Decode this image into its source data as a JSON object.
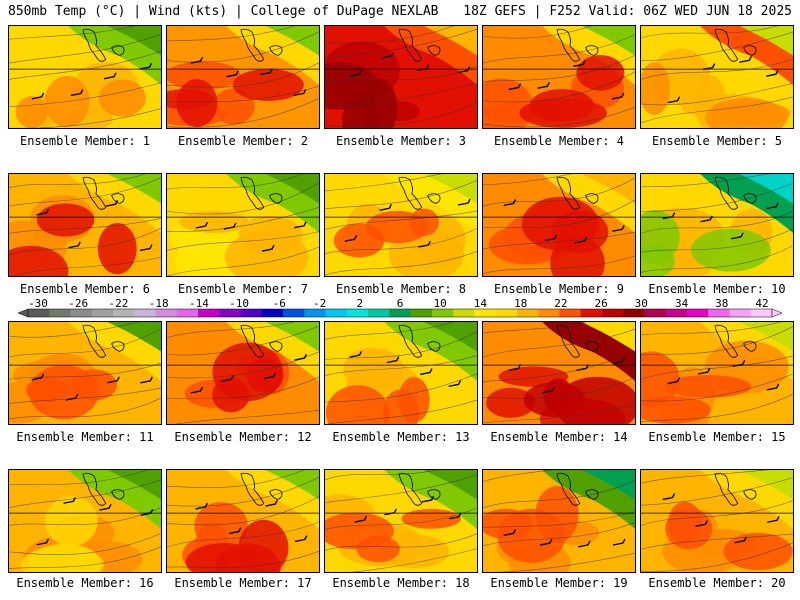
{
  "header": {
    "left": "850mb Temp (°C) | Wind (kts) | College of DuPage NEXLAB",
    "right": "18Z GEFS | F252 Valid: 06Z WED JUN 18 2025"
  },
  "panel_caption_prefix": "Ensemble Member:",
  "members": [
    {
      "label": "Ensemble Member: 1",
      "palette": [
        "#ffd800",
        "#ffb400",
        "#ff8c00",
        "#80c800",
        "#50a000"
      ]
    },
    {
      "label": "Ensemble Member: 2",
      "palette": [
        "#ff9600",
        "#ff5000",
        "#e21000",
        "#ffd800",
        "#80c800"
      ]
    },
    {
      "label": "Ensemble Member: 3",
      "palette": [
        "#e21000",
        "#c00000",
        "#960000",
        "#ff5000",
        "#ffb400"
      ]
    },
    {
      "label": "Ensemble Member: 4",
      "palette": [
        "#ff8c00",
        "#ff5000",
        "#e21000",
        "#ffd800",
        "#80c800"
      ]
    },
    {
      "label": "Ensemble Member: 5",
      "palette": [
        "#ffd800",
        "#ffb400",
        "#ff8c00",
        "#ff5000",
        "#c8dc00"
      ]
    },
    {
      "label": "Ensemble Member: 6",
      "palette": [
        "#ffb400",
        "#ff8c00",
        "#e21000",
        "#ffd800",
        "#80c800"
      ]
    },
    {
      "label": "Ensemble Member: 7",
      "palette": [
        "#ffd800",
        "#ffe600",
        "#ffb400",
        "#80c800",
        "#50a000"
      ]
    },
    {
      "label": "Ensemble Member: 8",
      "palette": [
        "#ffd800",
        "#ffb400",
        "#ff5000",
        "#ffe600",
        "#c8dc00"
      ]
    },
    {
      "label": "Ensemble Member: 9",
      "palette": [
        "#ff8c00",
        "#ff5000",
        "#e21000",
        "#ffd800",
        "#ffb400"
      ]
    },
    {
      "label": "Ensemble Member: 10",
      "palette": [
        "#ffd800",
        "#ffb400",
        "#80c800",
        "#00a050",
        "#00d2c8"
      ]
    },
    {
      "label": "Ensemble Member: 11",
      "palette": [
        "#ffb400",
        "#ff8c00",
        "#ff5000",
        "#ffd800",
        "#50a000"
      ]
    },
    {
      "label": "Ensemble Member: 12",
      "palette": [
        "#ff8c00",
        "#ff5000",
        "#e21000",
        "#ffd800",
        "#80c800"
      ]
    },
    {
      "label": "Ensemble Member: 13",
      "palette": [
        "#ffd800",
        "#ffb400",
        "#ff5000",
        "#80c800",
        "#50a000"
      ]
    },
    {
      "label": "Ensemble Member: 14",
      "palette": [
        "#ff8c00",
        "#e21000",
        "#c00000",
        "#960000",
        "#ffd800"
      ]
    },
    {
      "label": "Ensemble Member: 15",
      "palette": [
        "#ffb400",
        "#ff8c00",
        "#ff5000",
        "#ffd800",
        "#c8dc00"
      ]
    },
    {
      "label": "Ensemble Member: 16",
      "palette": [
        "#ffb400",
        "#ff8c00",
        "#ffd800",
        "#80c800",
        "#50a000"
      ]
    },
    {
      "label": "Ensemble Member: 17",
      "palette": [
        "#ffb400",
        "#ff5000",
        "#e21000",
        "#ffd800",
        "#80c800"
      ]
    },
    {
      "label": "Ensemble Member: 18",
      "palette": [
        "#ffd800",
        "#ffb400",
        "#ff5000",
        "#80c800",
        "#50a000"
      ]
    },
    {
      "label": "Ensemble Member: 19",
      "palette": [
        "#ffb400",
        "#ff8c00",
        "#ff5000",
        "#50a000",
        "#00a050"
      ]
    },
    {
      "label": "Ensemble Member: 20",
      "palette": [
        "#ffb400",
        "#ff8c00",
        "#ff5000",
        "#ffd800",
        "#c8dc00"
      ]
    }
  ],
  "colorbar": {
    "tick_labels": [
      "-30",
      "-26",
      "-22",
      "-18",
      "-14",
      "-10",
      "-6",
      "-2",
      "2",
      "6",
      "10",
      "14",
      "18",
      "22",
      "26",
      "30",
      "34",
      "38",
      "42"
    ],
    "colors": [
      "#5a5a5a",
      "#6e7a6e",
      "#8c8c8c",
      "#a0a0a0",
      "#b4b4b4",
      "#c8b4dc",
      "#d28cdc",
      "#e664f0",
      "#c800c8",
      "#8c00c8",
      "#5000c8",
      "#0000c8",
      "#0050e6",
      "#0096f0",
      "#00c8f0",
      "#00e6dc",
      "#00c8a0",
      "#00a050",
      "#50a000",
      "#80c800",
      "#c8dc00",
      "#ffe600",
      "#ffd800",
      "#ffb400",
      "#ff8c00",
      "#ff5000",
      "#e21000",
      "#c00000",
      "#960000",
      "#b40050",
      "#c8008c",
      "#e600c8",
      "#f064f0",
      "#f8a0f8",
      "#ffc8ff"
    ]
  }
}
